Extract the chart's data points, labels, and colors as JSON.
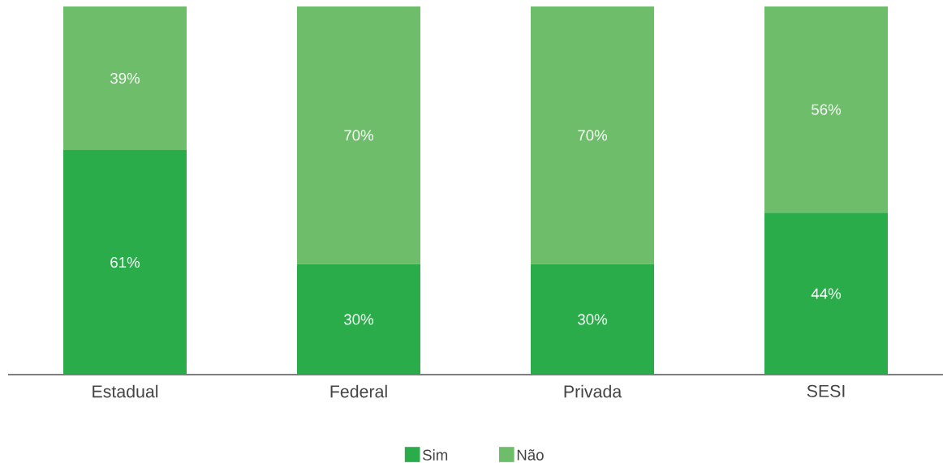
{
  "chart_data": {
    "type": "bar",
    "stacked": true,
    "categories": [
      "Estadual",
      "Federal",
      "Privada",
      "SESI"
    ],
    "series": [
      {
        "name": "Sim",
        "color": "#2aac4a",
        "values": [
          61,
          30,
          30,
          44
        ],
        "value_labels": [
          "61%",
          "30%",
          "30%",
          "44%"
        ]
      },
      {
        "name": "Não",
        "color": "#6dbd6a",
        "values": [
          39,
          70,
          70,
          56
        ],
        "value_labels": [
          "39%",
          "70%",
          "70%",
          "56%"
        ]
      }
    ],
    "legend": "bottom"
  }
}
